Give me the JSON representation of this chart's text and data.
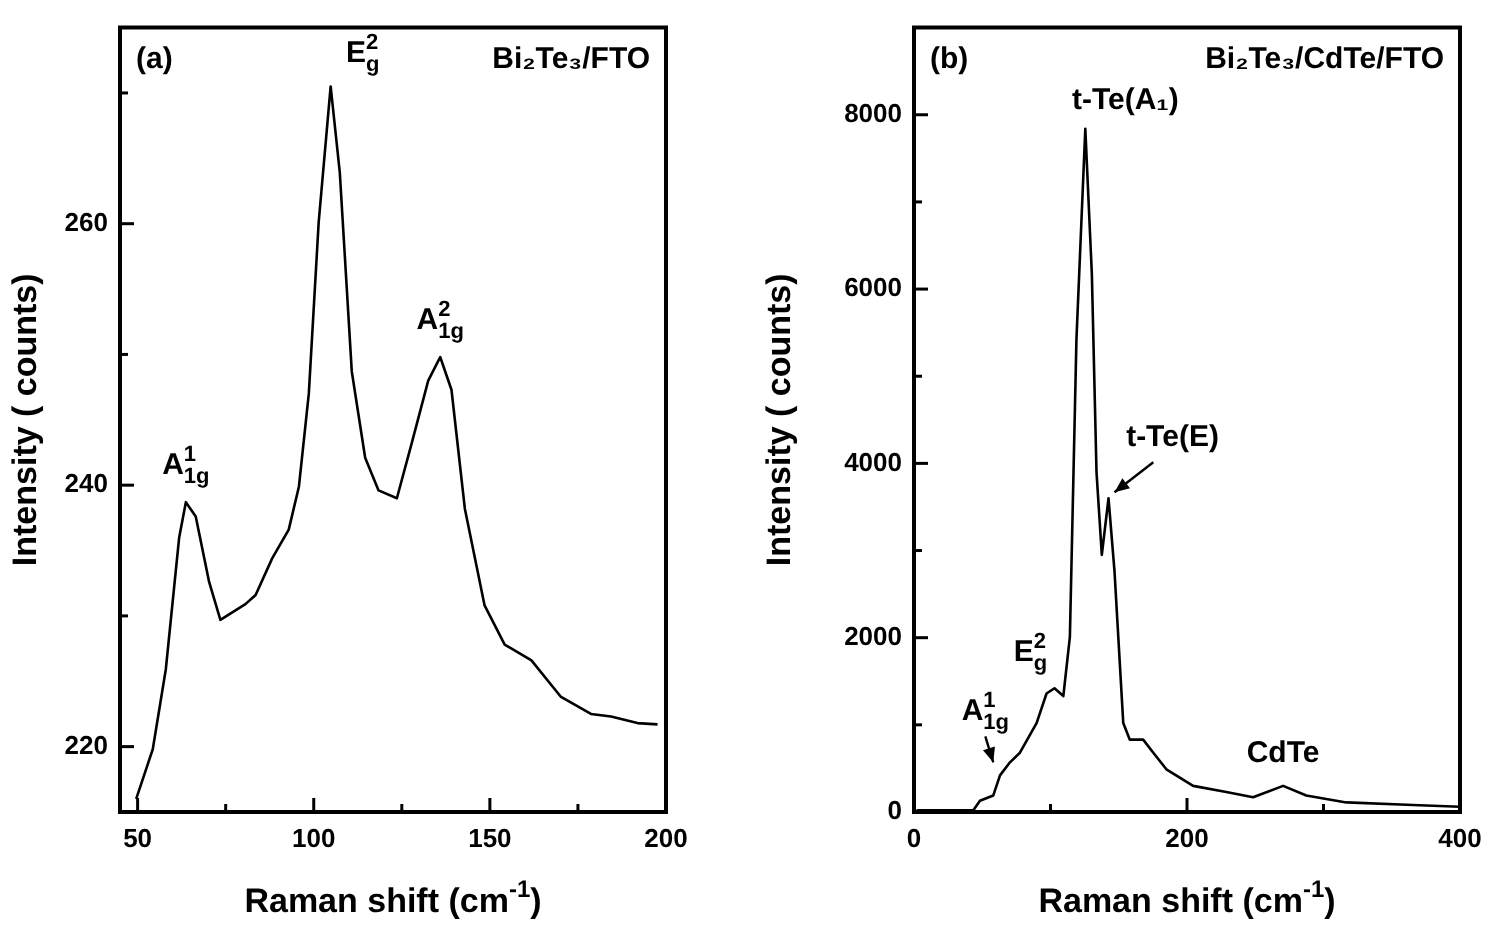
{
  "chart_data": [
    {
      "type": "line",
      "xlabel": "Raman shift (cm$^{-1}$)",
      "ylabel": "Intensity ( counts)",
      "xlim": [
        45,
        200
      ],
      "xticks": [
        50,
        {
          "value": 75,
          "label": null
        },
        100,
        {
          "value": 125,
          "label": null
        },
        150,
        {
          "value": 175,
          "label": null
        },
        200
      ],
      "ylim": [
        215,
        275
      ],
      "yticks": [
        220,
        {
          "value": 230,
          "label": null
        },
        240,
        {
          "value": 250,
          "label": null
        },
        260,
        {
          "value": 270,
          "label": null
        }
      ],
      "grid": false,
      "legend": false,
      "marker": "none",
      "line_style": "solid",
      "series": [
        {
          "color": "#000000",
          "x": [
            49.6,
            54.3,
            58,
            61.8,
            63.7,
            66.5,
            70.3,
            73.5,
            80.6,
            83.5,
            88.2,
            92.9,
            95.8,
            98.6,
            101.4,
            104.8,
            107.4,
            110.8,
            114.6,
            118.4,
            123.6,
            127.8,
            132.5,
            135.9,
            139.1,
            142.9,
            148.5,
            154.2,
            161.8,
            170.2,
            178.7,
            184.4,
            191.9,
            197.6
          ],
          "values": [
            216,
            219.8,
            225.9,
            236,
            238.7,
            237.6,
            232.6,
            229.7,
            230.9,
            231.6,
            234.4,
            236.6,
            239.9,
            247,
            260.1,
            270.5,
            263.9,
            248.7,
            242.1,
            239.6,
            239,
            243.2,
            248,
            249.8,
            247.3,
            238.2,
            230.8,
            227.8,
            226.6,
            223.8,
            222.5,
            222.3,
            221.8,
            221.7
          ]
        }
      ],
      "annotations": [
        "(a)",
        "Bi₂Te₃/FTO",
        {
          "text": "A$_{1g}$$^{1}$",
          "x": 63.7,
          "y": 238.7
        },
        {
          "text": "E$_{g}$$^{2}$",
          "x": 104.8,
          "y": 270.5
        },
        {
          "text": "A$_{1g}$$^{2}$",
          "x": 135.9,
          "y": 249.8
        }
      ]
    },
    {
      "type": "line",
      "xlabel": "Raman shift (cm$^{-1}$)",
      "ylabel": "Intensity ( counts)",
      "xlim": [
        0,
        400
      ],
      "xticks": [
        0,
        {
          "value": 100,
          "label": null
        },
        200,
        {
          "value": 300,
          "label": null
        },
        400
      ],
      "ylim": [
        0,
        9000
      ],
      "yticks": [
        0,
        {
          "value": 1000,
          "label": null
        },
        2000,
        {
          "value": 3000,
          "label": null
        },
        4000,
        {
          "value": 5000,
          "label": null
        },
        6000,
        {
          "value": 7000,
          "label": null
        },
        8000
      ],
      "grid": false,
      "legend": false,
      "marker": "none",
      "line_style": "solid",
      "series": [
        {
          "color": "#000000",
          "x": [
            1.9,
            43.5,
            48.3,
            58.1,
            63,
            70.3,
            77.6,
            89.8,
            97.1,
            102.9,
            109.4,
            114.2,
            119,
            125.5,
            130.3,
            133.7,
            137.6,
            142.5,
            146.9,
            153.3,
            158.1,
            167.9,
            175.3,
            184.9,
            204.5,
            228.8,
            248.4,
            270.4,
            287.4,
            316.7,
            365.6,
            399.7
          ],
          "values": [
            20,
            20,
            130,
            190,
            420,
            570,
            680,
            1020,
            1360,
            1420,
            1330,
            2010,
            5420,
            7840,
            6170,
            3900,
            2950,
            3600,
            2760,
            1020,
            830,
            830,
            680,
            490,
            300,
            230,
            170,
            300,
            190,
            110,
            80,
            60
          ]
        }
      ],
      "annotations": [
        "(b)",
        "Bi₂Te₃/CdTe/FTO",
        {
          "text": "t-Te(A₁)",
          "x": 125.5,
          "y": 7840
        },
        {
          "text": "t-Te(E)",
          "x": 142.5,
          "y": 3600
        },
        {
          "text": "E$_{g}$$^{2}$",
          "x": 97.1,
          "y": 1360
        },
        {
          "text": "A$_{1g}$$^{1}$",
          "x": 58.1,
          "y": 500
        },
        {
          "text": "CdTe",
          "x": 270.4,
          "y": 300
        }
      ]
    }
  ]
}
